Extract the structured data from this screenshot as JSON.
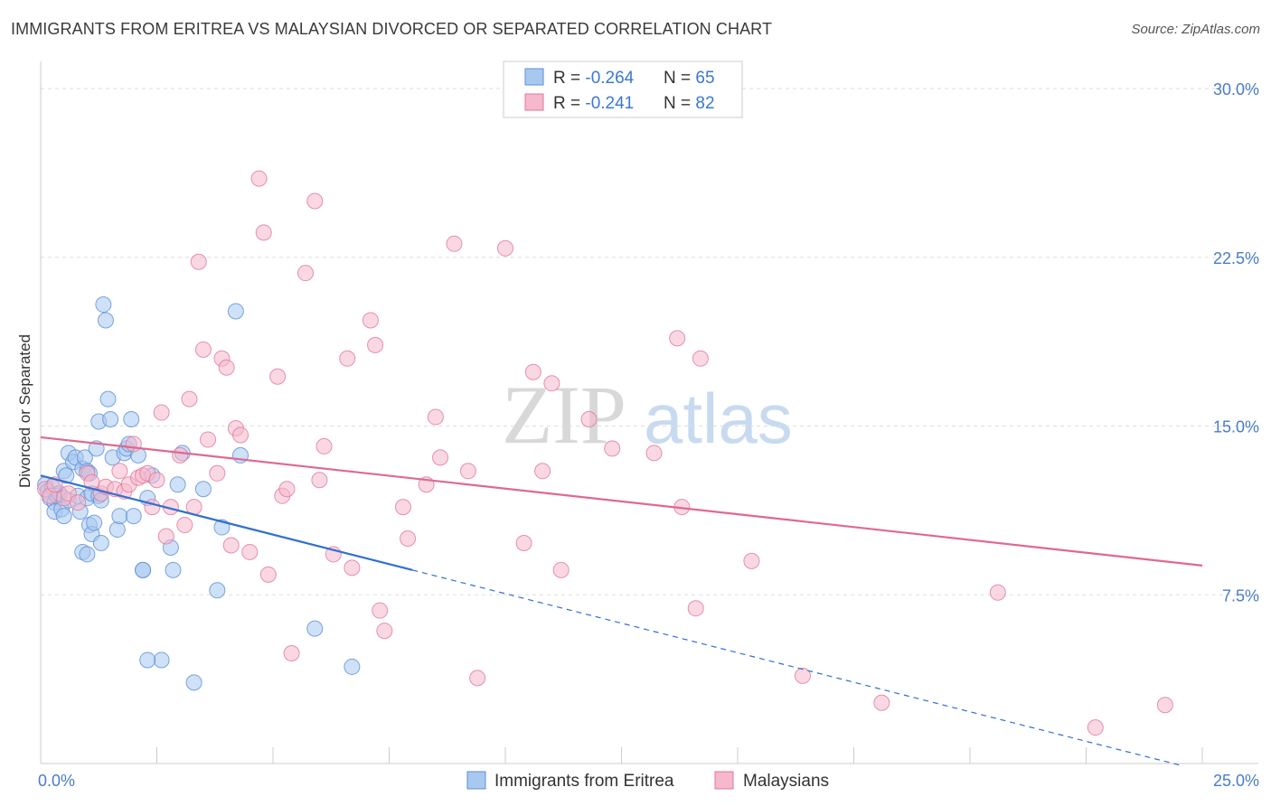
{
  "title": "IMMIGRANTS FROM ERITREA VS MALAYSIAN DIVORCED OR SEPARATED CORRELATION CHART",
  "source": "Source: ZipAtlas.com",
  "watermark": {
    "zip": "ZIP",
    "atlas": "atlas"
  },
  "colors": {
    "blue_fill": "#a8c8f0",
    "blue_stroke": "#5b8fd8",
    "blue_line": "#3070d0",
    "pink_fill": "#f5b8cc",
    "pink_stroke": "#e07898",
    "pink_line": "#e06890",
    "axis_label": "#4a7cc8",
    "grid": "#dddddd"
  },
  "stats": [
    {
      "r_label": "R = ",
      "r_value": "-0.264",
      "n_label": "N = ",
      "n_value": "65",
      "series": "blue"
    },
    {
      "r_label": "R = ",
      "r_value": "-0.241",
      "n_label": "N = ",
      "n_value": "82",
      "series": "pink"
    }
  ],
  "chart_data": {
    "type": "scatter",
    "title": "IMMIGRANTS FROM ERITREA VS MALAYSIAN DIVORCED OR SEPARATED CORRELATION CHART",
    "xlabel": "",
    "ylabel": "Divorced or Separated",
    "xlim": [
      0,
      25
    ],
    "ylim": [
      0,
      30
    ],
    "x_tick_labels": [
      "0.0%",
      "25.0%"
    ],
    "y_ticks": [
      7.5,
      15.0,
      22.5,
      30.0
    ],
    "y_tick_labels": [
      "7.5%",
      "15.0%",
      "22.5%",
      "30.0%"
    ],
    "grid": true,
    "legend_position": "bottom",
    "series": [
      {
        "name": "Immigrants from Eritrea",
        "color": "blue",
        "trend": {
          "x0": 0,
          "y0": 12.8,
          "x1": 8.0,
          "y1": 8.6,
          "dashed_to_x": 24.5
        },
        "points": [
          [
            0.1,
            12.4
          ],
          [
            0.15,
            12.1
          ],
          [
            0.2,
            11.8
          ],
          [
            0.25,
            12.3
          ],
          [
            0.3,
            11.6
          ],
          [
            0.35,
            11.9
          ],
          [
            0.3,
            11.2
          ],
          [
            0.4,
            12.0
          ],
          [
            0.45,
            11.3
          ],
          [
            0.5,
            13.0
          ],
          [
            0.5,
            11.0
          ],
          [
            0.55,
            12.8
          ],
          [
            0.6,
            13.8
          ],
          [
            0.6,
            11.7
          ],
          [
            0.7,
            13.4
          ],
          [
            0.75,
            13.6
          ],
          [
            0.8,
            11.9
          ],
          [
            0.85,
            11.2
          ],
          [
            0.9,
            13.1
          ],
          [
            0.95,
            13.6
          ],
          [
            1.0,
            11.8
          ],
          [
            1.0,
            13.0
          ],
          [
            1.05,
            12.9
          ],
          [
            1.1,
            12.0
          ],
          [
            0.9,
            9.4
          ],
          [
            1.0,
            9.3
          ],
          [
            1.05,
            10.6
          ],
          [
            1.1,
            10.2
          ],
          [
            1.15,
            10.7
          ],
          [
            1.2,
            14.0
          ],
          [
            1.25,
            15.2
          ],
          [
            1.3,
            9.8
          ],
          [
            1.25,
            11.9
          ],
          [
            1.3,
            11.7
          ],
          [
            1.35,
            20.4
          ],
          [
            1.4,
            19.7
          ],
          [
            1.45,
            16.2
          ],
          [
            1.5,
            15.3
          ],
          [
            1.55,
            13.6
          ],
          [
            1.65,
            10.4
          ],
          [
            1.7,
            11.0
          ],
          [
            1.8,
            13.8
          ],
          [
            1.85,
            14.0
          ],
          [
            1.9,
            14.2
          ],
          [
            1.95,
            15.3
          ],
          [
            2.0,
            11.0
          ],
          [
            2.1,
            13.7
          ],
          [
            2.2,
            8.6
          ],
          [
            2.3,
            11.8
          ],
          [
            2.4,
            12.8
          ],
          [
            2.8,
            9.6
          ],
          [
            2.85,
            8.6
          ],
          [
            2.95,
            12.4
          ],
          [
            3.05,
            13.8
          ],
          [
            2.6,
            4.6
          ],
          [
            3.3,
            3.6
          ],
          [
            3.5,
            12.2
          ],
          [
            3.9,
            10.5
          ],
          [
            4.2,
            20.1
          ],
          [
            4.3,
            13.7
          ],
          [
            3.8,
            7.7
          ],
          [
            5.9,
            6.0
          ],
          [
            6.7,
            4.3
          ],
          [
            2.3,
            4.6
          ],
          [
            2.2,
            8.6
          ]
        ]
      },
      {
        "name": "Malaysians",
        "color": "pink",
        "trend": {
          "x0": 0,
          "y0": 14.5,
          "x1": 25.0,
          "y1": 8.8
        },
        "points": [
          [
            0.1,
            12.2
          ],
          [
            0.2,
            11.9
          ],
          [
            0.3,
            12.4
          ],
          [
            0.5,
            11.8
          ],
          [
            0.6,
            12.0
          ],
          [
            0.8,
            11.6
          ],
          [
            1.0,
            12.9
          ],
          [
            1.1,
            12.5
          ],
          [
            1.3,
            12.0
          ],
          [
            1.4,
            12.3
          ],
          [
            1.6,
            12.2
          ],
          [
            1.7,
            13.0
          ],
          [
            1.8,
            12.1
          ],
          [
            1.9,
            12.4
          ],
          [
            2.0,
            14.2
          ],
          [
            2.1,
            12.7
          ],
          [
            2.2,
            12.8
          ],
          [
            2.3,
            12.9
          ],
          [
            2.4,
            11.4
          ],
          [
            2.5,
            12.6
          ],
          [
            2.6,
            15.6
          ],
          [
            2.7,
            10.1
          ],
          [
            2.8,
            11.4
          ],
          [
            3.0,
            13.7
          ],
          [
            3.1,
            10.6
          ],
          [
            3.2,
            16.2
          ],
          [
            3.3,
            11.4
          ],
          [
            3.4,
            22.3
          ],
          [
            3.5,
            18.4
          ],
          [
            3.6,
            14.4
          ],
          [
            3.8,
            12.9
          ],
          [
            3.9,
            18.0
          ],
          [
            4.0,
            17.6
          ],
          [
            4.1,
            9.7
          ],
          [
            4.2,
            14.9
          ],
          [
            4.3,
            14.6
          ],
          [
            4.5,
            9.4
          ],
          [
            4.7,
            26.0
          ],
          [
            4.8,
            23.6
          ],
          [
            4.9,
            8.4
          ],
          [
            5.1,
            17.2
          ],
          [
            5.2,
            11.9
          ],
          [
            5.3,
            12.2
          ],
          [
            5.4,
            4.9
          ],
          [
            5.7,
            21.8
          ],
          [
            5.9,
            25.0
          ],
          [
            6.1,
            14.1
          ],
          [
            6.3,
            9.3
          ],
          [
            6.6,
            18.0
          ],
          [
            6.7,
            8.7
          ],
          [
            7.1,
            19.7
          ],
          [
            7.2,
            18.6
          ],
          [
            7.3,
            6.8
          ],
          [
            7.4,
            5.9
          ],
          [
            7.8,
            11.4
          ],
          [
            7.9,
            10.0
          ],
          [
            8.3,
            12.4
          ],
          [
            8.5,
            15.4
          ],
          [
            8.6,
            13.6
          ],
          [
            8.9,
            23.1
          ],
          [
            9.2,
            13.0
          ],
          [
            9.4,
            3.8
          ],
          [
            10.0,
            22.9
          ],
          [
            10.4,
            9.8
          ],
          [
            10.6,
            17.4
          ],
          [
            10.8,
            13.0
          ],
          [
            11.0,
            16.9
          ],
          [
            11.2,
            8.6
          ],
          [
            11.8,
            15.3
          ],
          [
            13.2,
            13.8
          ],
          [
            13.7,
            18.9
          ],
          [
            13.8,
            11.4
          ],
          [
            14.1,
            6.9
          ],
          [
            14.2,
            18.0
          ],
          [
            15.3,
            9.0
          ],
          [
            16.4,
            3.9
          ],
          [
            18.1,
            2.7
          ],
          [
            20.6,
            7.6
          ],
          [
            22.7,
            1.6
          ],
          [
            24.2,
            2.6
          ],
          [
            12.3,
            14.0
          ],
          [
            6.0,
            12.6
          ]
        ]
      }
    ]
  }
}
